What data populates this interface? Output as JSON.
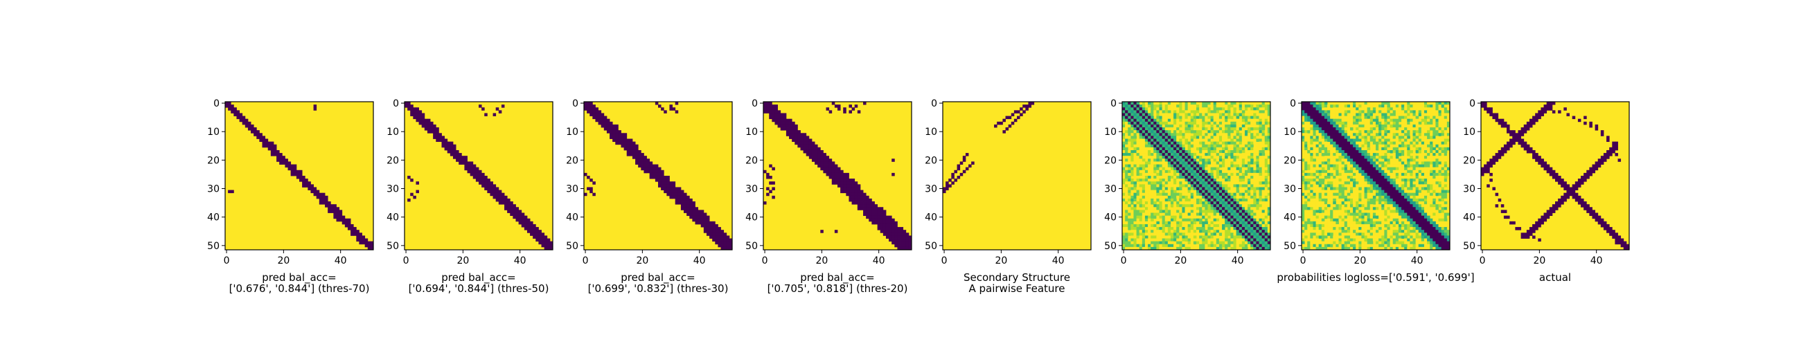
{
  "figure": {
    "colors": {
      "low": "#440154",
      "high": "#fde725",
      "mid_light": "#b5de2b",
      "mid": "#6ece58",
      "mid_dark": "#35b779",
      "teal": "#1f9e89",
      "blue": "#31688e",
      "frame": "#000000"
    }
  },
  "chart_data": [
    {
      "type": "heatmap",
      "panel": "pred_thres70",
      "caption": [
        "pred bal_acc=",
        "['0.676', '0.844'] (thres-70)"
      ],
      "grid_size": 52,
      "xticks": [
        "0",
        "20",
        "40"
      ],
      "yticks": [
        "0",
        "10",
        "20",
        "30",
        "40",
        "50"
      ],
      "xlim": [
        0,
        51
      ],
      "ylim": [
        51,
        0
      ],
      "colormap": "viridis (binary)",
      "diagonal_band_halfwidth": [
        1.5,
        2.0
      ],
      "extra_dark_points": [
        [
          31,
          2
        ],
        [
          1,
          31
        ]
      ]
    },
    {
      "type": "heatmap",
      "panel": "pred_thres50",
      "caption": [
        "pred bal_acc=",
        "['0.694', '0.844'] (thres-50)"
      ],
      "grid_size": 52,
      "xticks": [
        "0",
        "20",
        "40"
      ],
      "yticks": [
        "0",
        "10",
        "20",
        "30",
        "40",
        "50"
      ],
      "xlim": [
        0,
        51
      ],
      "ylim": [
        51,
        0
      ],
      "colormap": "viridis (binary)",
      "diagonal_band_halfwidth": [
        2.0,
        2.5
      ],
      "extra_dark_points": [
        [
          32,
          2
        ],
        [
          33,
          3
        ],
        [
          31,
          4
        ],
        [
          34,
          1
        ],
        [
          1,
          26
        ],
        [
          2,
          27
        ],
        [
          4,
          28
        ]
      ]
    },
    {
      "type": "heatmap",
      "panel": "pred_thres30",
      "caption": [
        "pred bal_acc=",
        "['0.699', '0.832'] (thres-30)"
      ],
      "grid_size": 52,
      "xticks": [
        "0",
        "20",
        "40"
      ],
      "yticks": [
        "0",
        "10",
        "20",
        "30",
        "40",
        "50"
      ],
      "xlim": [
        0,
        51
      ],
      "ylim": [
        51,
        0
      ],
      "colormap": "viridis (binary)",
      "diagonal_band_halfwidth": [
        2.5,
        3.5
      ],
      "extra_dark_points": [
        [
          26,
          1
        ],
        [
          27,
          2
        ],
        [
          28,
          3
        ],
        [
          30,
          2
        ],
        [
          32,
          0
        ],
        [
          0,
          25
        ],
        [
          1,
          26
        ],
        [
          2,
          27
        ],
        [
          1,
          30
        ],
        [
          2,
          31
        ],
        [
          3,
          32
        ]
      ]
    },
    {
      "type": "heatmap",
      "panel": "pred_thres20",
      "caption": [
        "pred bal_acc=",
        "['0.705', '0.818'] (thres-20)"
      ],
      "grid_size": 52,
      "xticks": [
        "0",
        "20",
        "40"
      ],
      "yticks": [
        "0",
        "10",
        "20",
        "30",
        "40",
        "50"
      ],
      "xlim": [
        0,
        51
      ],
      "ylim": [
        51,
        0
      ],
      "colormap": "viridis (binary)",
      "diagonal_band_halfwidth": [
        3.0,
        4.5
      ],
      "extra_dark_points": [
        [
          22,
          2
        ],
        [
          23,
          3
        ],
        [
          26,
          1
        ],
        [
          28,
          2
        ],
        [
          30,
          3
        ],
        [
          32,
          1
        ],
        [
          35,
          0
        ],
        [
          0,
          24
        ],
        [
          1,
          25
        ],
        [
          2,
          26
        ],
        [
          3,
          28
        ],
        [
          1,
          30
        ],
        [
          2,
          31
        ],
        [
          3,
          33
        ],
        [
          20,
          45
        ],
        [
          25,
          45
        ]
      ]
    },
    {
      "type": "heatmap",
      "panel": "secondary_structure",
      "caption": [
        "Secondary Structure",
        "A pairwise Feature"
      ],
      "grid_size": 52,
      "xticks": [
        "0",
        "20",
        "40"
      ],
      "yticks": [
        "0",
        "10",
        "20",
        "30",
        "40",
        "50"
      ],
      "xlim": [
        0,
        51
      ],
      "ylim": [
        51,
        0
      ],
      "colormap": "viridis (binary)",
      "antidiagonal_segments": [
        [
          0,
          30,
          8,
          18
        ],
        [
          21,
          10,
          31,
          0
        ]
      ]
    },
    {
      "type": "heatmap",
      "panel": "pairwise_feature_continuous",
      "caption": [
        "",
        ""
      ],
      "grid_size": 52,
      "xticks": [
        "0",
        "20",
        "40"
      ],
      "yticks": [
        "0",
        "10",
        "20",
        "30",
        "40",
        "50"
      ],
      "xlim": [
        0,
        51
      ],
      "ylim": [
        51,
        0
      ],
      "colormap": "viridis (continuous)",
      "pattern": "striped diagonal band with faint off-diagonal texture"
    },
    {
      "type": "heatmap",
      "panel": "probabilities",
      "caption": [
        "probabilities logloss=['0.591', '0.699']",
        ""
      ],
      "grid_size": 52,
      "xticks": [
        "0",
        "20",
        "40"
      ],
      "yticks": [
        "0",
        "10",
        "20",
        "30",
        "40",
        "50"
      ],
      "xlim": [
        0,
        51
      ],
      "ylim": [
        51,
        0
      ],
      "colormap": "viridis (continuous)",
      "pattern": "dark diagonal band with green halo"
    },
    {
      "type": "heatmap",
      "panel": "actual",
      "caption": [
        "actual",
        ""
      ],
      "grid_size": 52,
      "xticks": [
        "0",
        "20",
        "40"
      ],
      "yticks": [
        "0",
        "10",
        "20",
        "30",
        "40",
        "50"
      ],
      "xlim": [
        0,
        51
      ],
      "ylim": [
        51,
        0
      ],
      "colormap": "viridis (binary)",
      "pattern": "diagonal band plus two crossing anti-diagonals and loop contacts"
    }
  ]
}
